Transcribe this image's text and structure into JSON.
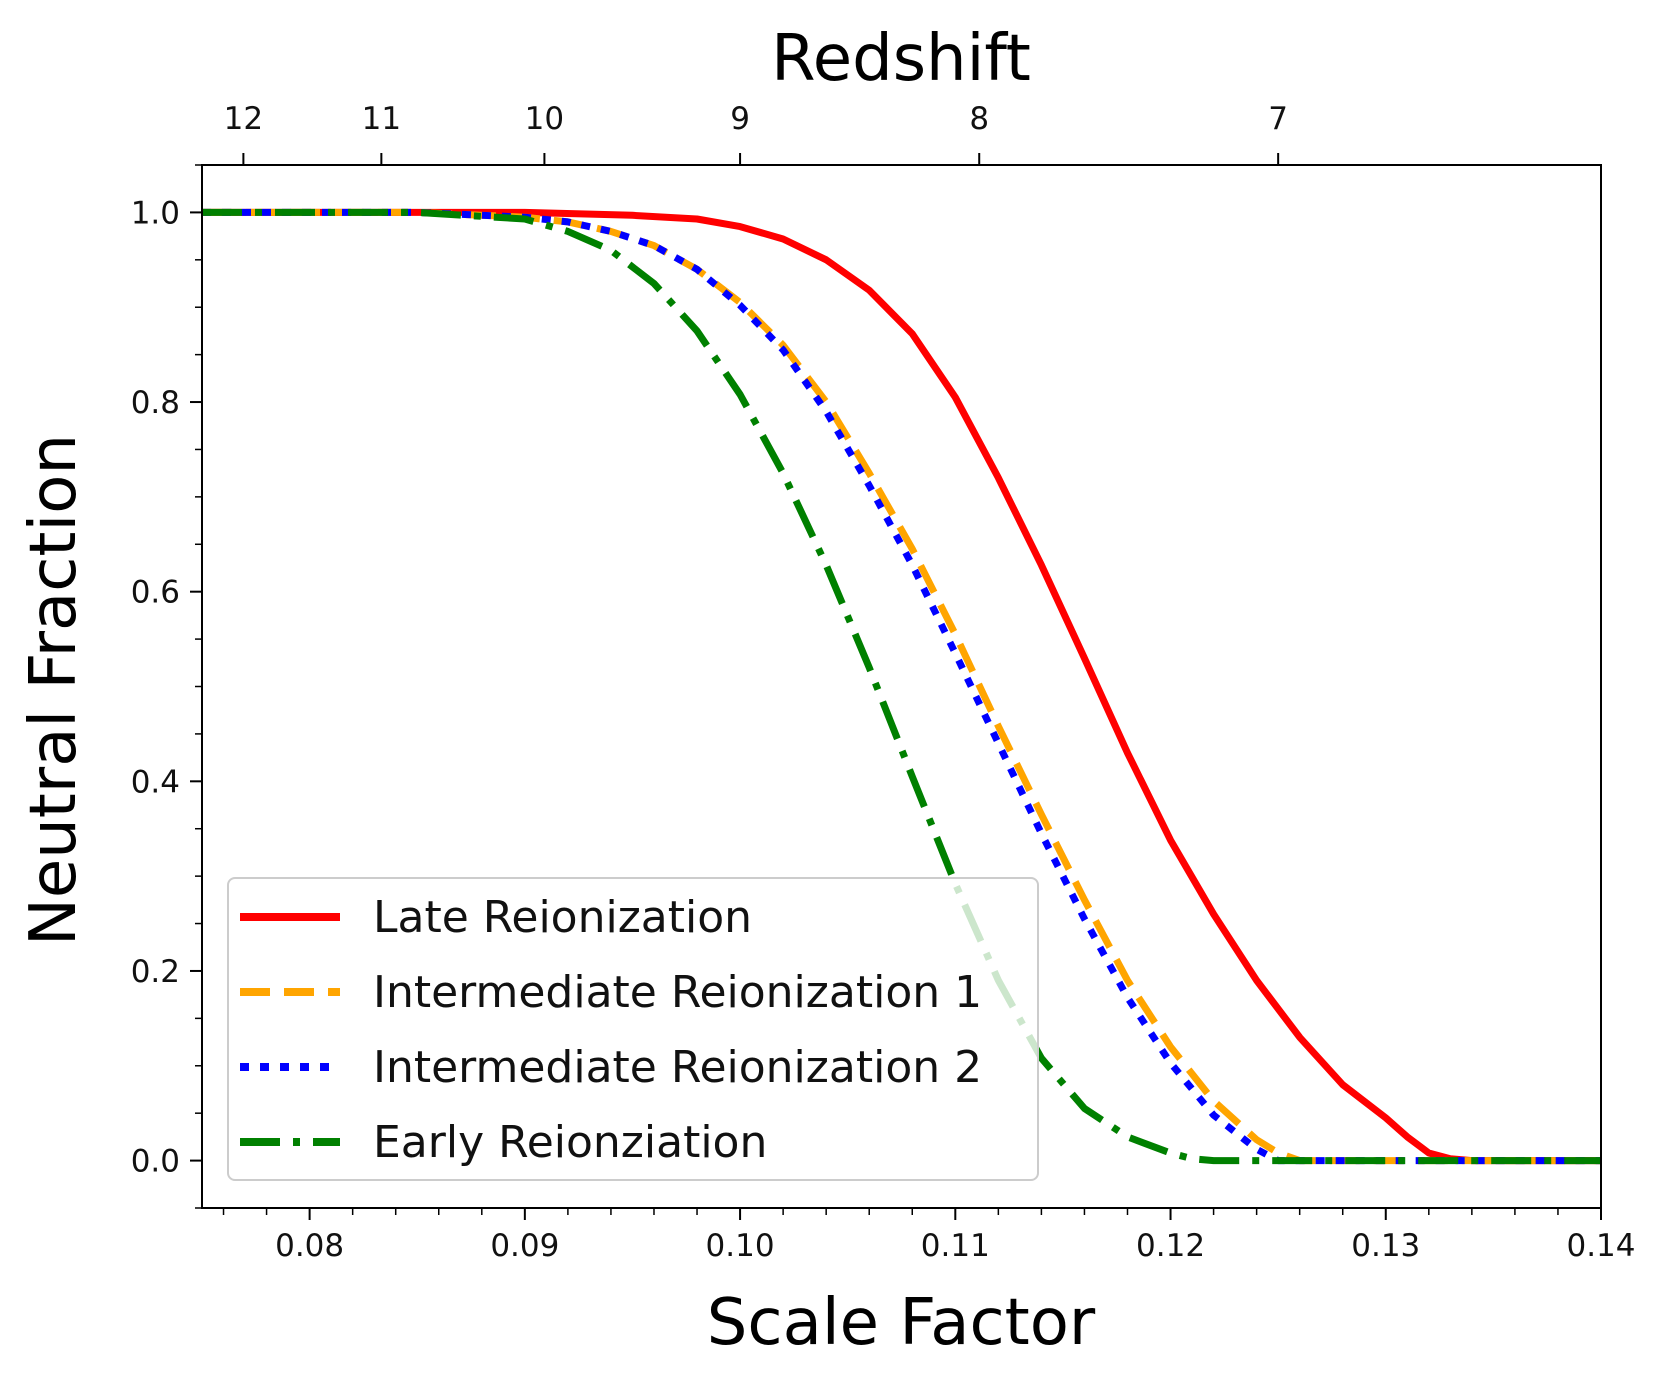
{
  "chart_data": {
    "type": "line",
    "xlabel": "Scale Factor",
    "ylabel": "Neutral Fraction",
    "top_axis_label": "Redshift",
    "xlim": [
      0.075,
      0.14
    ],
    "ylim": [
      -0.05,
      1.05
    ],
    "grid": false,
    "x_ticks": [
      {
        "value": 0.08,
        "label": "0.08"
      },
      {
        "value": 0.09,
        "label": "0.09"
      },
      {
        "value": 0.1,
        "label": "0.10"
      },
      {
        "value": 0.11,
        "label": "0.11"
      },
      {
        "value": 0.12,
        "label": "0.12"
      },
      {
        "value": 0.13,
        "label": "0.13"
      },
      {
        "value": 0.14,
        "label": "0.14"
      }
    ],
    "y_ticks": [
      {
        "value": 0.0,
        "label": "0.0"
      },
      {
        "value": 0.2,
        "label": "0.2"
      },
      {
        "value": 0.4,
        "label": "0.4"
      },
      {
        "value": 0.6,
        "label": "0.6"
      },
      {
        "value": 0.8,
        "label": "0.8"
      },
      {
        "value": 1.0,
        "label": "1.0"
      }
    ],
    "redshift_ticks": [
      {
        "z": 12,
        "label": "12"
      },
      {
        "z": 11,
        "label": "11"
      },
      {
        "z": 10,
        "label": "10"
      },
      {
        "z": 9,
        "label": "9"
      },
      {
        "z": 8,
        "label": "8"
      },
      {
        "z": 7,
        "label": "7"
      }
    ],
    "legend_position": "lower-left",
    "series": [
      {
        "name": "Late Reionization",
        "color": "#ff0000",
        "style": "solid",
        "x": [
          0.075,
          0.085,
          0.09,
          0.095,
          0.098,
          0.1,
          0.102,
          0.104,
          0.106,
          0.108,
          0.11,
          0.112,
          0.114,
          0.116,
          0.118,
          0.12,
          0.122,
          0.124,
          0.126,
          0.128,
          0.13,
          0.131,
          0.132,
          0.133,
          0.134,
          0.14
        ],
        "y": [
          1.0,
          1.0,
          1.0,
          0.997,
          0.993,
          0.985,
          0.972,
          0.95,
          0.918,
          0.872,
          0.805,
          0.72,
          0.628,
          0.53,
          0.43,
          0.338,
          0.26,
          0.19,
          0.13,
          0.08,
          0.045,
          0.025,
          0.008,
          0.002,
          0.0,
          0.0
        ]
      },
      {
        "name": "Intermediate Reionization 1",
        "color": "#ffa500",
        "style": "dashed",
        "x": [
          0.075,
          0.085,
          0.09,
          0.092,
          0.094,
          0.096,
          0.098,
          0.1,
          0.102,
          0.104,
          0.106,
          0.108,
          0.11,
          0.112,
          0.114,
          0.116,
          0.118,
          0.12,
          0.122,
          0.124,
          0.125,
          0.126,
          0.14
        ],
        "y": [
          1.0,
          1.0,
          0.995,
          0.99,
          0.98,
          0.965,
          0.94,
          0.905,
          0.86,
          0.8,
          0.725,
          0.645,
          0.555,
          0.458,
          0.365,
          0.275,
          0.19,
          0.12,
          0.063,
          0.022,
          0.008,
          0.0,
          0.0
        ]
      },
      {
        "name": "Intermediate Reionization 2",
        "color": "#0000ff",
        "style": "dotted",
        "x": [
          0.075,
          0.085,
          0.09,
          0.092,
          0.094,
          0.096,
          0.098,
          0.1,
          0.102,
          0.104,
          0.106,
          0.108,
          0.11,
          0.112,
          0.114,
          0.116,
          0.118,
          0.12,
          0.122,
          0.124,
          0.125,
          0.14
        ],
        "y": [
          1.0,
          1.0,
          0.995,
          0.99,
          0.98,
          0.965,
          0.94,
          0.902,
          0.855,
          0.79,
          0.712,
          0.628,
          0.535,
          0.44,
          0.345,
          0.255,
          0.172,
          0.103,
          0.048,
          0.012,
          0.0,
          0.0
        ]
      },
      {
        "name": "Early Reionziation",
        "color": "#008000",
        "style": "dashdot",
        "x": [
          0.075,
          0.085,
          0.09,
          0.092,
          0.094,
          0.096,
          0.098,
          0.1,
          0.102,
          0.104,
          0.106,
          0.108,
          0.11,
          0.112,
          0.114,
          0.116,
          0.118,
          0.12,
          0.121,
          0.122,
          0.14
        ],
        "y": [
          1.0,
          1.0,
          0.993,
          0.98,
          0.96,
          0.925,
          0.875,
          0.808,
          0.725,
          0.628,
          0.52,
          0.405,
          0.292,
          0.19,
          0.108,
          0.055,
          0.025,
          0.008,
          0.002,
          0.0,
          0.0
        ]
      }
    ]
  }
}
